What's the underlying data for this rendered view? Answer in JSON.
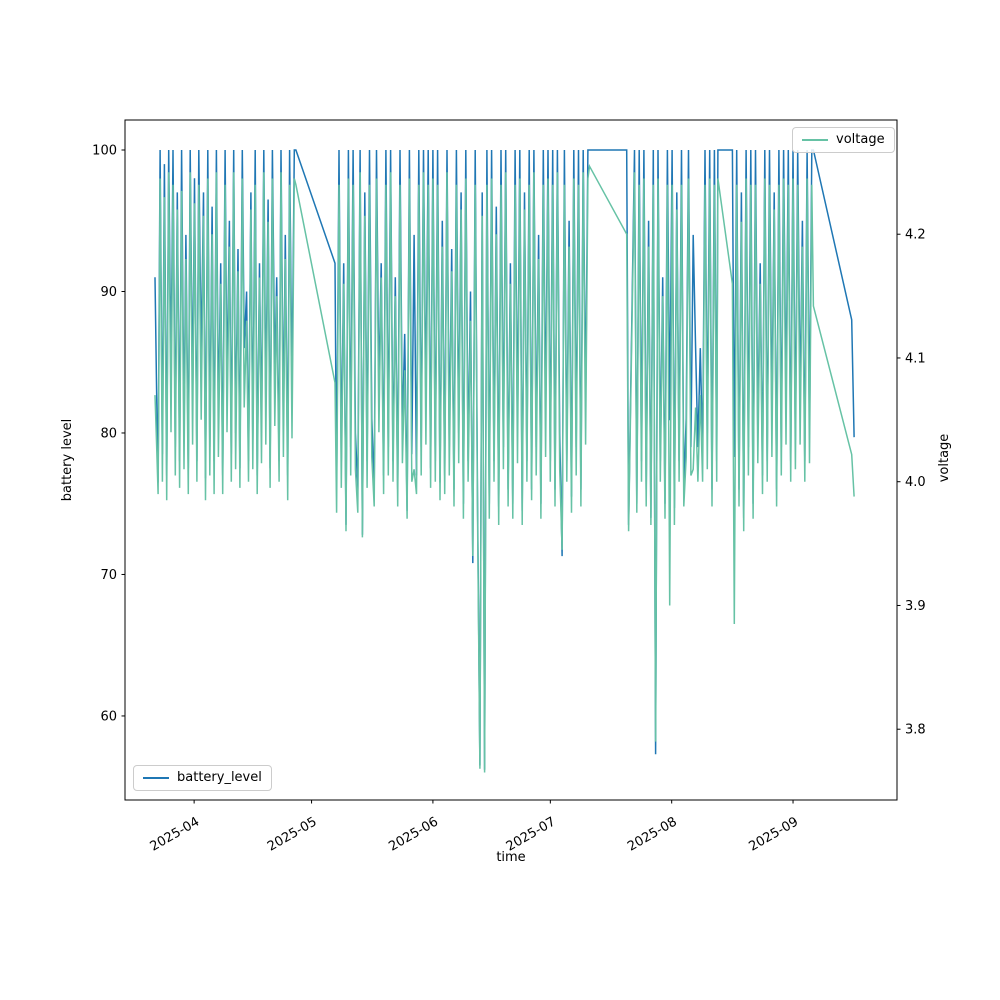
{
  "figure": {
    "background": "#ffffff"
  },
  "colors": {
    "battery_line": "#1f77b4",
    "voltage_line": "#66c2a5",
    "axis": "#000000",
    "tick_label": "#000000",
    "legend_border": "#cccccc"
  },
  "legends": {
    "battery": {
      "label": "battery_level"
    },
    "voltage": {
      "label": "voltage"
    }
  },
  "axes": {
    "x_label": "time",
    "left_label": "battery level",
    "right_label": "voltage",
    "left_tick_labels": [
      "100",
      "90",
      "80",
      "70",
      "60"
    ],
    "right_tick_labels": [
      "4.2",
      "4.1",
      "4.0",
      "3.9",
      "3.8"
    ],
    "x_tick_labels": [
      "2025-04",
      "2025-05",
      "2025-06",
      "2025-07",
      "2025-08",
      "2025-09"
    ]
  },
  "chart_data": {
    "type": "line",
    "title": "",
    "xlabel": "time",
    "ylabel_left": "battery level",
    "ylabel_right": "voltage",
    "legend_position_battery": "lower left",
    "legend_position_voltage": "upper right",
    "grid": false,
    "x_unit": "days since 2025-03-22",
    "x_start_date": "2025-03-22",
    "x_ticks": [
      {
        "label": "2025-04",
        "day": 10
      },
      {
        "label": "2025-05",
        "day": 40
      },
      {
        "label": "2025-06",
        "day": 71
      },
      {
        "label": "2025-07",
        "day": 101
      },
      {
        "label": "2025-08",
        "day": 132
      },
      {
        "label": "2025-09",
        "day": 163
      }
    ],
    "xlim_days": [
      -7.66,
      189.56
    ],
    "ylim_left": [
      54.06,
      102.12
    ],
    "ylim_right": [
      3.7428,
      4.2923
    ],
    "left_ticks": [
      100,
      90,
      80,
      70,
      60
    ],
    "right_ticks": [
      4.2,
      4.1,
      4.0,
      3.9,
      3.8
    ],
    "series": [
      {
        "name": "battery_level",
        "axis": "left",
        "color": "#1f77b4"
      },
      {
        "name": "voltage",
        "axis": "right",
        "color": "#66c2a5"
      }
    ],
    "points_format": [
      "day",
      "battery_level",
      "voltage"
    ],
    "points": [
      [
        0,
        91,
        4.07
      ],
      [
        0.4,
        83,
        4.03
      ],
      [
        0.8,
        76.5,
        3.99
      ],
      [
        1.3,
        100,
        4.245
      ],
      [
        1.9,
        78.5,
        4.0
      ],
      [
        2.4,
        99,
        4.23
      ],
      [
        3.0,
        77,
        3.985
      ],
      [
        3.5,
        100,
        4.25
      ],
      [
        4.1,
        84,
        4.04
      ],
      [
        4.6,
        100,
        4.24
      ],
      [
        5.2,
        79,
        4.005
      ],
      [
        5.7,
        97,
        4.22
      ],
      [
        6.3,
        78,
        3.995
      ],
      [
        6.8,
        100,
        4.235
      ],
      [
        7.4,
        80,
        4.01
      ],
      [
        7.9,
        94,
        4.18
      ],
      [
        8.5,
        77.5,
        3.99
      ],
      [
        9.0,
        100,
        4.25
      ],
      [
        9.6,
        82,
        4.03
      ],
      [
        10.1,
        98,
        4.225
      ],
      [
        10.7,
        78,
        4.0
      ],
      [
        11.2,
        100,
        4.24
      ],
      [
        11.8,
        85,
        4.05
      ],
      [
        12.4,
        97,
        4.215
      ],
      [
        12.9,
        76.8,
        3.985
      ],
      [
        13.5,
        100,
        4.245
      ],
      [
        14.0,
        79,
        4.005
      ],
      [
        14.6,
        96,
        4.2
      ],
      [
        15.1,
        78,
        3.99
      ],
      [
        15.7,
        100,
        4.25
      ],
      [
        16.2,
        81,
        4.02
      ],
      [
        16.8,
        92,
        4.16
      ],
      [
        17.3,
        77,
        3.99
      ],
      [
        17.9,
        100,
        4.24
      ],
      [
        18.4,
        83,
        4.04
      ],
      [
        19.0,
        95,
        4.19
      ],
      [
        19.5,
        78.5,
        4.0
      ],
      [
        20.1,
        100,
        4.25
      ],
      [
        20.6,
        80,
        4.01
      ],
      [
        21.2,
        93,
        4.17
      ],
      [
        21.7,
        77.5,
        3.995
      ],
      [
        22.3,
        100,
        4.245
      ],
      [
        22.8,
        86,
        4.06
      ],
      [
        23.4,
        90,
        4.13
      ],
      [
        23.9,
        78,
        4.0
      ],
      [
        24.5,
        97,
        4.22
      ],
      [
        25.0,
        79.5,
        4.01
      ],
      [
        25.6,
        100,
        4.24
      ],
      [
        26.1,
        77,
        3.99
      ],
      [
        26.7,
        92,
        4.165
      ],
      [
        27.2,
        80,
        4.015
      ],
      [
        27.8,
        100,
        4.25
      ],
      [
        28.3,
        82,
        4.03
      ],
      [
        28.9,
        96.5,
        4.21
      ],
      [
        29.4,
        77.5,
        3.995
      ],
      [
        30.0,
        100,
        4.245
      ],
      [
        30.6,
        84,
        4.045
      ],
      [
        31.1,
        91,
        4.15
      ],
      [
        31.7,
        78,
        4.0
      ],
      [
        32.2,
        100,
        4.25
      ],
      [
        32.8,
        80.5,
        4.02
      ],
      [
        33.3,
        94,
        4.18
      ],
      [
        33.9,
        77,
        3.985
      ],
      [
        34.4,
        100,
        4.24
      ],
      [
        35.0,
        83,
        4.035
      ],
      [
        35.6,
        100,
        4.245
      ],
      [
        36,
        100,
        4.24
      ],
      [
        46,
        92,
        4.08
      ],
      [
        46.4,
        76,
        3.975
      ],
      [
        47,
        100,
        4.24
      ],
      [
        47.6,
        78,
        3.995
      ],
      [
        48.2,
        92,
        4.16
      ],
      [
        48.8,
        73.5,
        3.96
      ],
      [
        49.4,
        100,
        4.245
      ],
      [
        50,
        79,
        4.005
      ],
      [
        50.6,
        100,
        4.24
      ],
      [
        51.2,
        80,
        4.01
      ],
      [
        51.8,
        76,
        3.975
      ],
      [
        52.4,
        100,
        4.25
      ],
      [
        53,
        72.8,
        3.955
      ],
      [
        53.6,
        97,
        4.215
      ],
      [
        54.2,
        78,
        3.995
      ],
      [
        54.8,
        100,
        4.24
      ],
      [
        55.4,
        81,
        4.02
      ],
      [
        56,
        76,
        3.98
      ],
      [
        56.6,
        100,
        4.245
      ],
      [
        57.2,
        83,
        4.04
      ],
      [
        57.8,
        92,
        4.165
      ],
      [
        58.4,
        77,
        3.99
      ],
      [
        59,
        100,
        4.24
      ],
      [
        59.6,
        79,
        4.005
      ],
      [
        60.2,
        100,
        4.25
      ],
      [
        60.8,
        78,
        4.0
      ],
      [
        61.4,
        91,
        4.15
      ],
      [
        62,
        76,
        3.98
      ],
      [
        62.6,
        100,
        4.24
      ],
      [
        63.2,
        80,
        4.015
      ],
      [
        63.8,
        87,
        4.09
      ],
      [
        64.4,
        74.5,
        3.97
      ],
      [
        65,
        100,
        4.245
      ],
      [
        65.6,
        78.5,
        4.0
      ],
      [
        66.2,
        94,
        4.01
      ],
      [
        66.8,
        77,
        3.99
      ],
      [
        67.4,
        100,
        4.24
      ],
      [
        68,
        79,
        4.005
      ],
      [
        68.6,
        100,
        4.25
      ],
      [
        69.2,
        82,
        4.03
      ],
      [
        69.8,
        100,
        4.24
      ],
      [
        70.4,
        77.5,
        3.995
      ],
      [
        71,
        100,
        4.245
      ],
      [
        71.6,
        78,
        4.0
      ],
      [
        72.2,
        100,
        4.24
      ],
      [
        72.8,
        76.5,
        3.985
      ],
      [
        73.4,
        95,
        4.19
      ],
      [
        74,
        77,
        3.99
      ],
      [
        74.6,
        100,
        4.25
      ],
      [
        75.2,
        79,
        4.005
      ],
      [
        75.8,
        93,
        4.17
      ],
      [
        76.4,
        76,
        3.98
      ],
      [
        77,
        100,
        4.24
      ],
      [
        77.6,
        80,
        4.015
      ],
      [
        78.2,
        97,
        4.22
      ],
      [
        78.8,
        75,
        3.97
      ],
      [
        79.4,
        100,
        4.245
      ],
      [
        80,
        78,
        4.0
      ],
      [
        80.6,
        90,
        4.13
      ],
      [
        81.2,
        70.8,
        3.94
      ],
      [
        81.8,
        100,
        4.24
      ],
      [
        82.4,
        75.5,
        3.975
      ],
      [
        83,
        56.5,
        3.768
      ],
      [
        83.6,
        97,
        4.215
      ],
      [
        84.2,
        56.2,
        3.765
      ],
      [
        84.8,
        100,
        4.24
      ],
      [
        85.4,
        75,
        3.97
      ],
      [
        86,
        100,
        4.245
      ],
      [
        86.6,
        78,
        4.0
      ],
      [
        87.2,
        96,
        4.2
      ],
      [
        87.8,
        74.8,
        3.965
      ],
      [
        88.4,
        100,
        4.24
      ],
      [
        89,
        79,
        4.01
      ],
      [
        89.6,
        100,
        4.25
      ],
      [
        90.2,
        76,
        3.98
      ],
      [
        90.8,
        92,
        4.16
      ],
      [
        91.4,
        75,
        3.97
      ],
      [
        92,
        100,
        4.24
      ],
      [
        92.6,
        80,
        4.015
      ],
      [
        93.2,
        100,
        4.245
      ],
      [
        93.8,
        74.5,
        3.965
      ],
      [
        94.4,
        97,
        4.22
      ],
      [
        95,
        78,
        4.0
      ],
      [
        95.6,
        100,
        4.24
      ],
      [
        96.2,
        76,
        3.985
      ],
      [
        96.8,
        100,
        4.25
      ],
      [
        97.4,
        79,
        4.005
      ],
      [
        98,
        94,
        4.18
      ],
      [
        98.6,
        75,
        3.97
      ],
      [
        99.2,
        100,
        4.24
      ],
      [
        99.8,
        81,
        4.02
      ],
      [
        100.4,
        100,
        4.245
      ],
      [
        101,
        78,
        4.0
      ],
      [
        101.6,
        100,
        4.24
      ],
      [
        102.2,
        76,
        3.98
      ],
      [
        102.8,
        100,
        4.25
      ],
      [
        103.4,
        80,
        4.01
      ],
      [
        104,
        71.3,
        3.945
      ],
      [
        104.6,
        100,
        4.24
      ],
      [
        105.2,
        78,
        4.0
      ],
      [
        105.8,
        95,
        4.19
      ],
      [
        106.4,
        75.5,
        3.975
      ],
      [
        107,
        100,
        4.245
      ],
      [
        107.6,
        79,
        4.005
      ],
      [
        108.2,
        100,
        4.24
      ],
      [
        108.8,
        76,
        3.98
      ],
      [
        109.4,
        100,
        4.25
      ],
      [
        110,
        82,
        4.03
      ],
      [
        110.6,
        100,
        4.245
      ],
      [
        111,
        100,
        4.255
      ],
      [
        120.5,
        100,
        4.2
      ],
      [
        121,
        73.5,
        3.96
      ],
      [
        122.5,
        100,
        4.25
      ],
      [
        123.1,
        75,
        3.975
      ],
      [
        123.7,
        100,
        4.24
      ],
      [
        124.3,
        78,
        4.0
      ],
      [
        124.9,
        100,
        4.245
      ],
      [
        125.5,
        76,
        3.98
      ],
      [
        126.1,
        95,
        4.19
      ],
      [
        126.7,
        74,
        3.965
      ],
      [
        127.3,
        100,
        4.24
      ],
      [
        127.9,
        57.3,
        3.79
      ],
      [
        128.5,
        100,
        4.245
      ],
      [
        129.1,
        78,
        4.0
      ],
      [
        129.7,
        91,
        4.15
      ],
      [
        130.3,
        75,
        3.97
      ],
      [
        130.9,
        100,
        4.24
      ],
      [
        131.5,
        80.9,
        3.9
      ],
      [
        132.1,
        100,
        4.24
      ],
      [
        132.7,
        74.7,
        3.965
      ],
      [
        133.3,
        97,
        4.22
      ],
      [
        133.9,
        78,
        4.0
      ],
      [
        134.5,
        100,
        4.24
      ],
      [
        135.1,
        76,
        3.98
      ],
      [
        135.7,
        81,
        4.02
      ],
      [
        136.3,
        100,
        4.245
      ],
      [
        136.9,
        79,
        4.005
      ],
      [
        137.5,
        94,
        4.01
      ],
      [
        138.1,
        86,
        4.06
      ],
      [
        138.7,
        79,
        4.0
      ],
      [
        139.3,
        86,
        4.07
      ],
      [
        139.9,
        78.5,
        4.0
      ],
      [
        140.5,
        100,
        4.24
      ],
      [
        141.1,
        80,
        4.01
      ],
      [
        141.7,
        100,
        4.245
      ],
      [
        142.3,
        76,
        3.98
      ],
      [
        142.9,
        100,
        4.24
      ],
      [
        143.5,
        78,
        4.0
      ],
      [
        143.8,
        100,
        4.245
      ],
      [
        147.5,
        100,
        4.16
      ],
      [
        148,
        78.3,
        3.885
      ],
      [
        148.6,
        100,
        4.24
      ],
      [
        149.2,
        76,
        3.98
      ],
      [
        149.8,
        97,
        4.21
      ],
      [
        150.4,
        74,
        3.96
      ],
      [
        151,
        100,
        4.245
      ],
      [
        151.6,
        79,
        4.005
      ],
      [
        152.2,
        100,
        4.24
      ],
      [
        152.8,
        75,
        3.97
      ],
      [
        153.4,
        100,
        4.24
      ],
      [
        154,
        80,
        4.015
      ],
      [
        154.6,
        92,
        4.16
      ],
      [
        155.2,
        77,
        3.99
      ],
      [
        155.8,
        100,
        4.245
      ],
      [
        156.4,
        78,
        4.0
      ],
      [
        157,
        100,
        4.24
      ],
      [
        157.6,
        81,
        4.02
      ],
      [
        158.2,
        97,
        4.22
      ],
      [
        158.8,
        76,
        3.98
      ],
      [
        159.4,
        100,
        4.24
      ],
      [
        160,
        79,
        4.005
      ],
      [
        160.6,
        100,
        4.245
      ],
      [
        161.2,
        82,
        4.03
      ],
      [
        161.8,
        100,
        4.24
      ],
      [
        162.4,
        78,
        4.0
      ],
      [
        163,
        100,
        4.245
      ],
      [
        163.6,
        79.5,
        4.01
      ],
      [
        164.2,
        100,
        4.24
      ],
      [
        164.8,
        82,
        4.03
      ],
      [
        165.4,
        95,
        4.19
      ],
      [
        166,
        78,
        4.0
      ],
      [
        166.6,
        100,
        4.245
      ],
      [
        167.2,
        80,
        4.015
      ],
      [
        167.8,
        100,
        4.24
      ],
      [
        168.2,
        100,
        4.142
      ],
      [
        178,
        88,
        4.022
      ],
      [
        178.6,
        79.7,
        3.988
      ]
    ]
  }
}
